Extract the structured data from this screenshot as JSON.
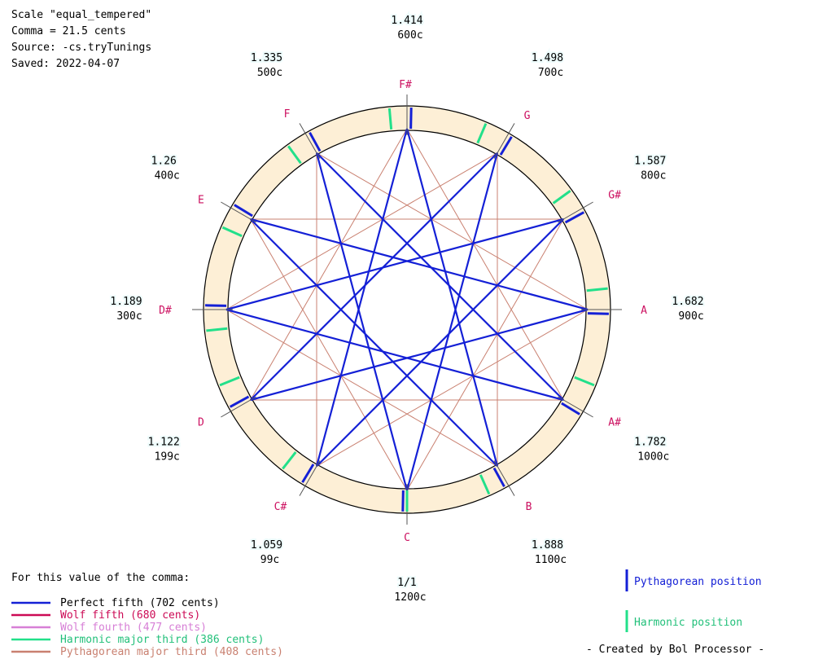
{
  "header": {
    "scale_line": "Scale \"equal_tempered\"",
    "comma_line": "Comma = 21.5 cents",
    "source_line": "Source: -cs.tryTunings",
    "saved_line": "Saved: 2022-04-07"
  },
  "diagram": {
    "notes": [
      {
        "name": "C",
        "ratio": "1/1",
        "cents": "1200c",
        "angle_deg": 0,
        "harm_offset_deg": 0
      },
      {
        "name": "C#",
        "ratio": "1.059",
        "cents": "99c",
        "angle_deg": 30,
        "harm_offset_deg": 8
      },
      {
        "name": "D",
        "ratio": "1.122",
        "cents": "199c",
        "angle_deg": 60,
        "harm_offset_deg": 8
      },
      {
        "name": "D#",
        "ratio": "1.189",
        "cents": "300c",
        "angle_deg": 90,
        "harm_offset_deg": -6
      },
      {
        "name": "E",
        "ratio": "1.26",
        "cents": "400c",
        "angle_deg": 120,
        "harm_offset_deg": -6
      },
      {
        "name": "F",
        "ratio": "1.335",
        "cents": "500c",
        "angle_deg": 150,
        "harm_offset_deg": -6
      },
      {
        "name": "F#",
        "ratio": "1.414",
        "cents": "600c",
        "angle_deg": 180,
        "harm_offset_deg": -5
      },
      {
        "name": "G",
        "ratio": "1.498",
        "cents": "700c",
        "angle_deg": 210,
        "harm_offset_deg": -7
      },
      {
        "name": "G#",
        "ratio": "1.587",
        "cents": "800c",
        "angle_deg": 240,
        "harm_offset_deg": -6
      },
      {
        "name": "A",
        "ratio": "1.682",
        "cents": "900c",
        "angle_deg": 270,
        "harm_offset_deg": -6
      },
      {
        "name": "A#",
        "ratio": "1.782",
        "cents": "1000c",
        "angle_deg": 300,
        "harm_offset_deg": -8
      },
      {
        "name": "B",
        "ratio": "1.888",
        "cents": "1100c",
        "angle_deg": 330,
        "harm_offset_deg": 6
      }
    ],
    "colors": {
      "ring_fill": "#fdefd6",
      "perfect_fifth": "#1420d6",
      "wolf_fifth": "#cc0a55",
      "wolf_fourth": "#d77fd6",
      "harmonic_third": "#22e08a",
      "pythagorean_third": "#c98070",
      "note_name": "#cc1060",
      "value_bg": "#eefcfc"
    }
  },
  "legend": {
    "heading": "For this value of the comma:",
    "items": [
      {
        "label": "Perfect fifth (702 cents)",
        "color": "#1420d6",
        "text_color": "#000000"
      },
      {
        "label": "Wolf fifth (680 cents)",
        "color": "#cc0a55",
        "text_color": "#cc0a55"
      },
      {
        "label": "Wolf fourth (477 cents)",
        "color": "#d77fd6",
        "text_color": "#d77fd6"
      },
      {
        "label": "Harmonic major third (386 cents)",
        "color": "#22e08a",
        "text_color": "#22c07a"
      },
      {
        "label": "Pythagorean major third (408 cents)",
        "color": "#c98070",
        "text_color": "#c98070"
      }
    ]
  },
  "position_legend": {
    "pythagorean": "Pythagorean position",
    "harmonic": "Harmonic position"
  },
  "footer": "- Created by Bol Processor -"
}
